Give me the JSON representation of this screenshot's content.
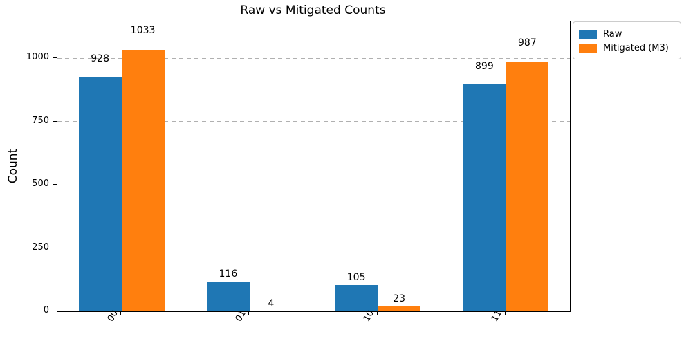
{
  "chart_data": {
    "type": "bar",
    "title": "Raw vs Mitigated Counts",
    "xlabel": "",
    "ylabel": "Count",
    "categories": [
      "00",
      "01",
      "10",
      "11"
    ],
    "series": [
      {
        "name": "Raw",
        "color": "#1f77b4",
        "values": [
          928,
          116,
          105,
          899
        ]
      },
      {
        "name": "Mitigated (M3)",
        "color": "#ff7f0e",
        "values": [
          1033,
          4,
          23,
          987
        ]
      }
    ],
    "yticks": [
      0,
      250,
      500,
      750,
      1000
    ],
    "ylim": [
      0,
      1146
    ],
    "grid": {
      "axis": "y",
      "style": "dashed",
      "color": "#b0b0b0"
    },
    "legend": {
      "position": "outside-top-right",
      "entries": [
        "Raw",
        "Mitigated (M3)"
      ]
    },
    "bar_value_labels_shown": true,
    "xtick_rotation_deg": 60
  }
}
